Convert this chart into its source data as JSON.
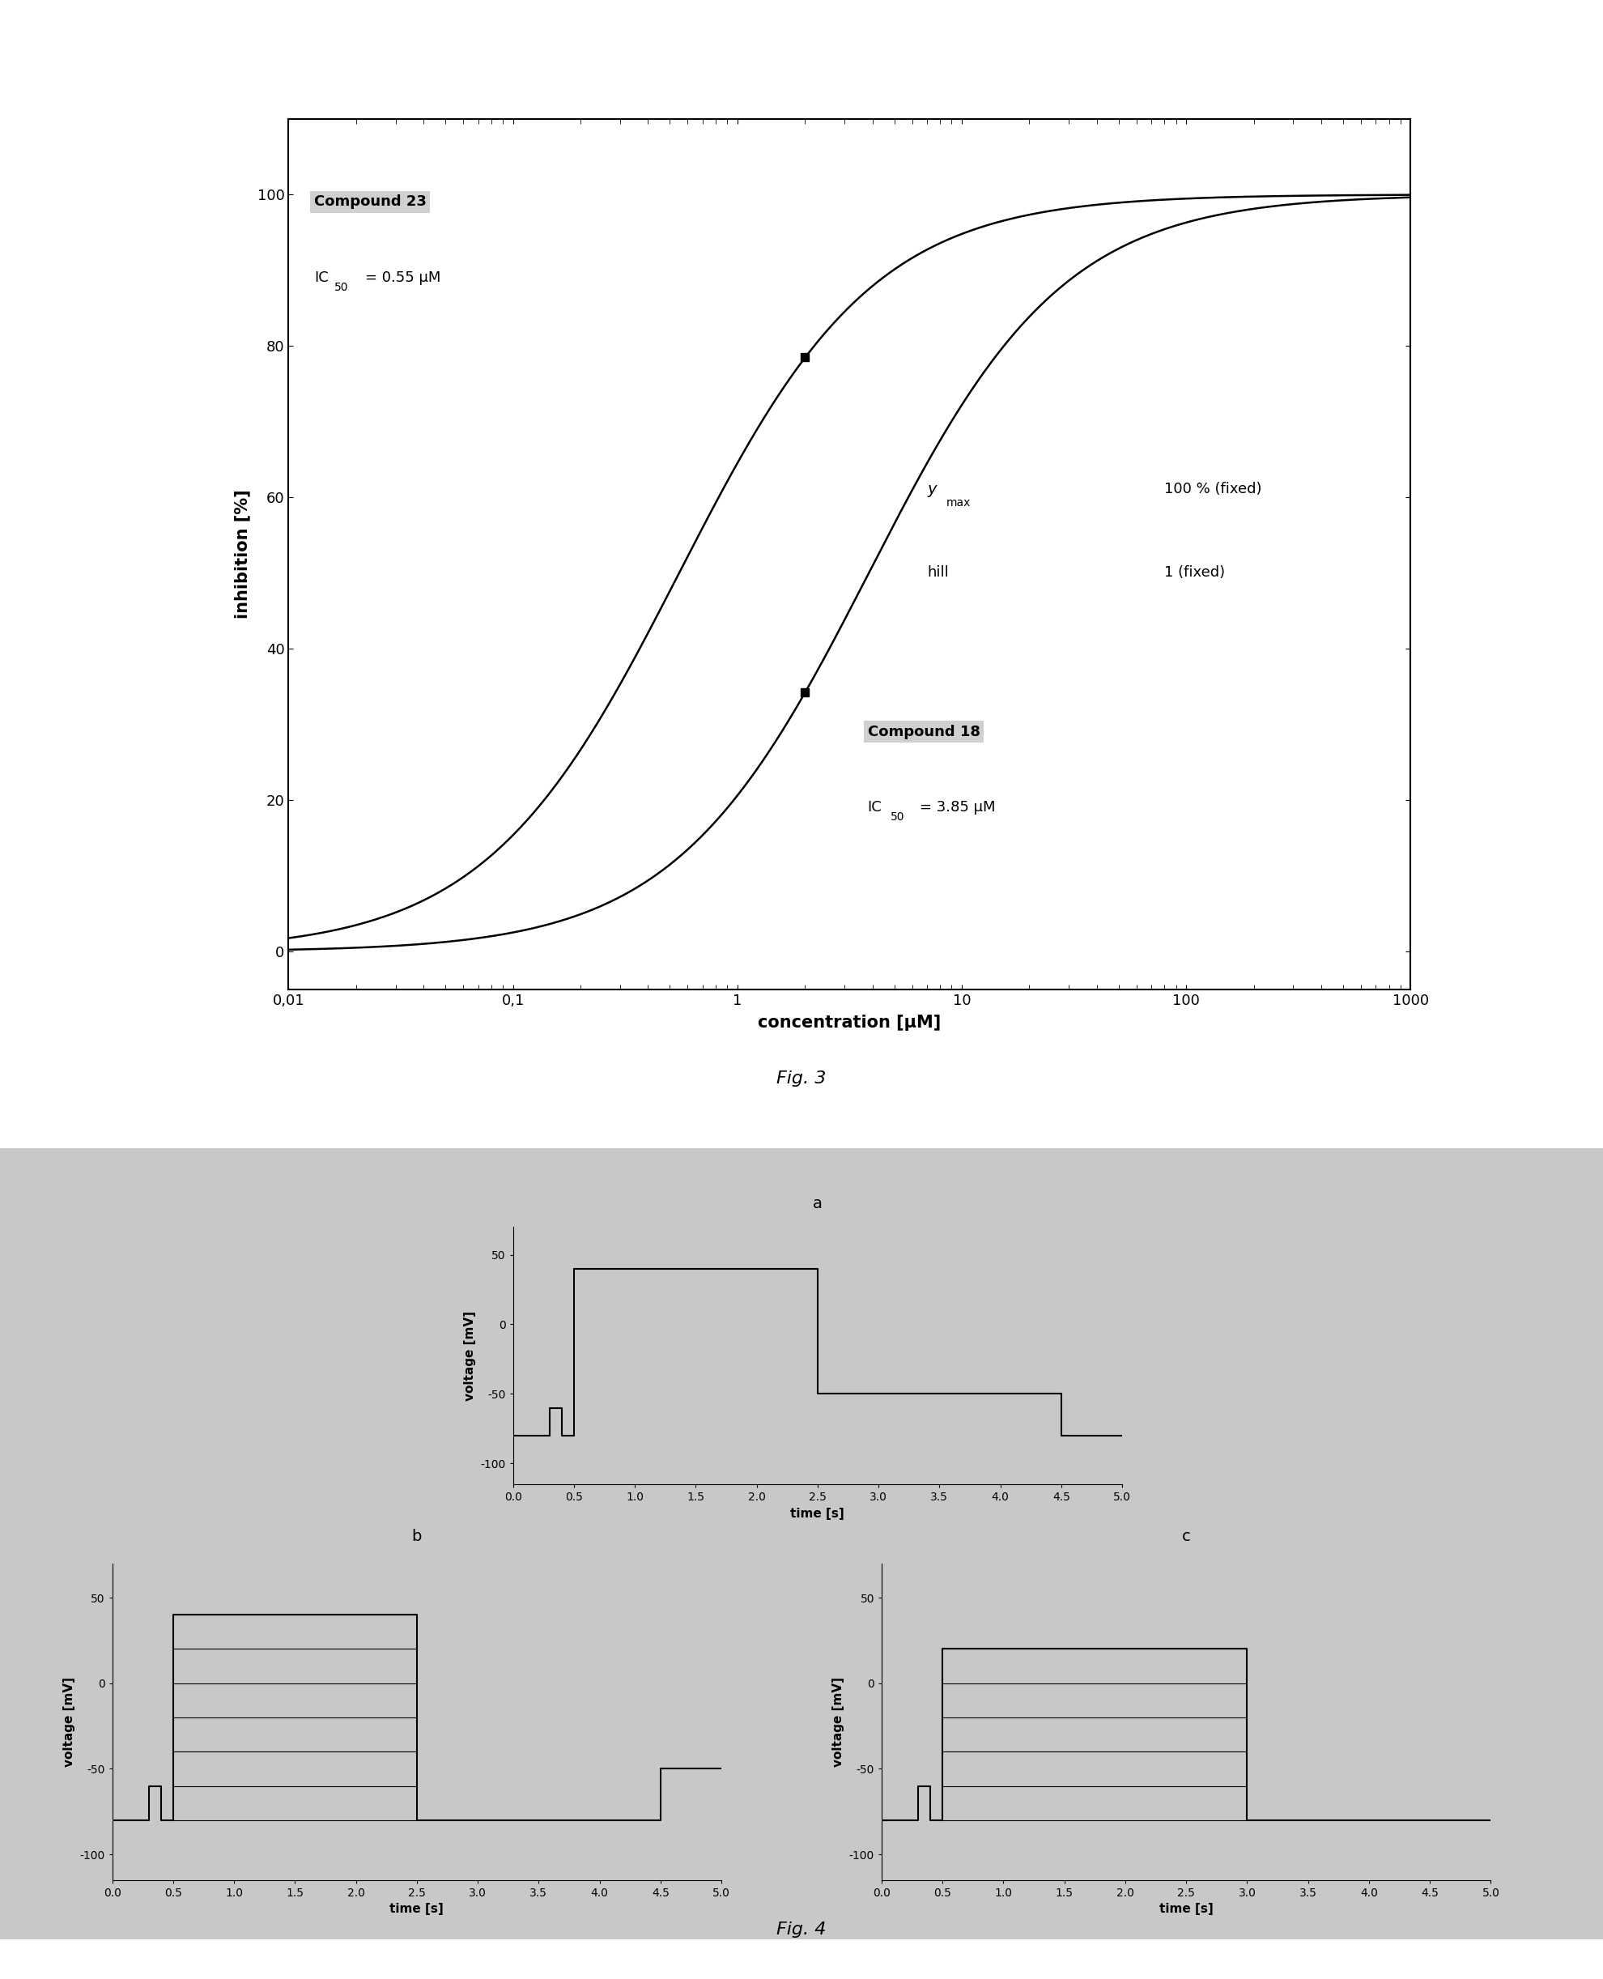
{
  "fig3": {
    "compound23_ic50": 0.55,
    "compound18_ic50": 3.85,
    "hill": 1.0,
    "ymax": 100.0,
    "xlabel": "concentration [μM]",
    "ylabel": "inhibition [%]",
    "ylim": [
      -5,
      110
    ],
    "yticks": [
      0,
      20,
      40,
      60,
      80,
      100
    ],
    "xtick_labels": [
      "0,01",
      "0,1",
      "1",
      "10",
      "100",
      "1000"
    ],
    "xtick_vals": [
      0.01,
      0.1,
      1.0,
      10.0,
      100.0,
      1000.0
    ],
    "c23_name": "Compound 23",
    "c23_ic50_text": "IC",
    "c23_ic50_val": "= 0.55 μM",
    "c18_name": "Compound 18",
    "c18_ic50_text": "IC",
    "c18_ic50_val": "= 3.85 μM",
    "ymax_label": "y",
    "hill_label": "hill",
    "ymax_value_label": "100 % (fixed)",
    "hill_value_label": "1 (fixed)",
    "fig_label": "Fig. 3",
    "marker_c23_x": 2.0,
    "marker_c23_y": 78.5,
    "marker_c18_x": 2.0,
    "marker_c18_y": 34.2,
    "bg_color": "#cccccc",
    "annotation_bg": "#c8c8c8"
  },
  "fig4": {
    "background_color": "#c8c8c8",
    "fig_label": "Fig. 4",
    "panel_a_label": "a",
    "panel_b_label": "b",
    "panel_c_label": "c",
    "voltage_ylabel": "voltage [mV]",
    "time_xlabel": "time [s]",
    "yticks_a": [
      -100,
      -50,
      0,
      50
    ],
    "ytick_labels_a": [
      "-100",
      "-50",
      "0",
      "50"
    ],
    "xtick_labels": [
      "0.0",
      "0.5",
      "1.0",
      "1.5",
      "2.0",
      "2.5",
      "3.0",
      "3.5",
      "4.0",
      "4.5",
      "5.0"
    ],
    "xtick_vals": [
      0.0,
      0.5,
      1.0,
      1.5,
      2.0,
      2.5,
      3.0,
      3.5,
      4.0,
      4.5,
      5.0
    ],
    "ylim": [
      -115,
      70
    ],
    "xlim": [
      0.0,
      5.0
    ],
    "panel_b_hlines": [
      -80,
      -60,
      -40,
      -20,
      0,
      20,
      40
    ],
    "panel_c_hlines": [
      -80,
      -60,
      -40,
      -20,
      0,
      20
    ]
  }
}
